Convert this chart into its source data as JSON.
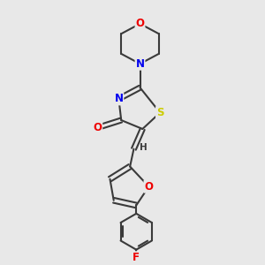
{
  "bg_color": "#e8e8e8",
  "bond_color": "#3a3a3a",
  "bond_width": 1.5,
  "atom_colors": {
    "N": "#0000ee",
    "O": "#ee0000",
    "S": "#cccc00",
    "F": "#ee0000",
    "H": "#3a3a3a"
  },
  "font_size": 8.5,
  "xlim": [
    0,
    10
  ],
  "ylim": [
    0,
    10
  ]
}
